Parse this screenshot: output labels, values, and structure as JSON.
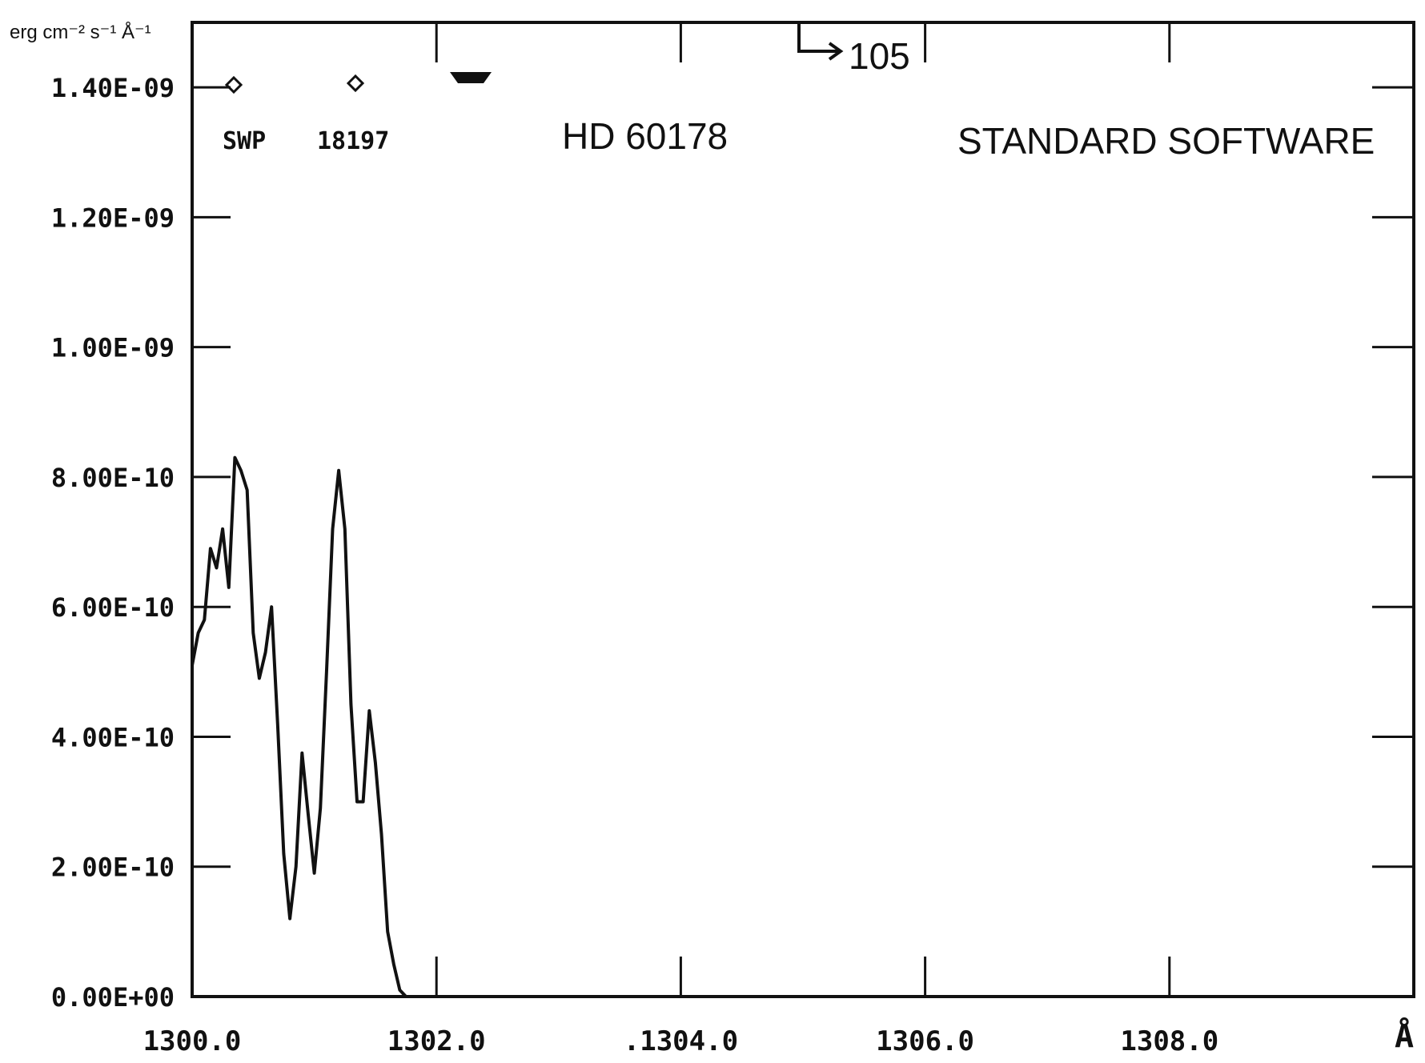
{
  "chart_data": {
    "type": "line",
    "ylabel": "erg cm⁻² s⁻¹ Å⁻¹",
    "xlabel": "Å",
    "xlim": [
      1300.0,
      1310.0
    ],
    "ylim": [
      0,
      1.5e-09
    ],
    "x_ticks": [
      1300.0,
      1302.0,
      1304.0,
      1306.0,
      1308.0
    ],
    "x_tick_labels": [
      "1300.0",
      "1302.0",
      ".1304.0",
      "1306.0",
      "1308.0"
    ],
    "y_ticks": [
      0,
      2e-10,
      4e-10,
      6e-10,
      8e-10,
      1e-09,
      1.2e-09,
      1.4e-09
    ],
    "y_tick_labels": [
      "0.00E+00",
      "2.00E-10",
      "4.00E-10",
      "6.00E-10",
      "8.00E-10",
      "1.00E-09",
      "1.20E-09",
      "1.40E-09"
    ],
    "grid": false,
    "annotations": {
      "swp_label": "SWP",
      "image_number": "18197",
      "star_name": "HD 60178",
      "software": "STANDARD SOFTWARE",
      "off_scale_marker": "105"
    },
    "series": [
      {
        "x": [
          1300.0,
          1300.05,
          1300.1,
          1300.15,
          1300.2,
          1300.25,
          1300.3,
          1300.35,
          1300.4,
          1300.45,
          1300.5,
          1300.55,
          1300.6,
          1300.65,
          1300.7,
          1300.75,
          1300.8,
          1300.85,
          1300.9,
          1300.95,
          1301.0,
          1301.05,
          1301.1,
          1301.15,
          1301.2,
          1301.25,
          1301.3,
          1301.35,
          1301.4,
          1301.45,
          1301.5,
          1301.55,
          1301.6,
          1301.65,
          1301.7,
          1301.75,
          1301.8,
          1301.85,
          1301.9,
          1301.95,
          1302.0,
          1302.05,
          1302.1,
          1302.2,
          1302.3,
          1302.4,
          1302.5,
          1302.55,
          1302.6,
          1302.65,
          1302.7,
          1302.75,
          1302.8,
          1302.85,
          1302.9,
          1302.95,
          1303.0,
          1303.05,
          1303.1,
          1303.15,
          1303.2,
          1303.25,
          1303.3,
          1303.35,
          1303.4,
          1303.45,
          1303.5,
          1303.55,
          1303.6,
          1303.65,
          1303.7,
          1303.75,
          1303.8,
          1303.85,
          1303.9,
          1303.95,
          1304.0,
          1304.05,
          1304.1,
          1304.15,
          1304.2,
          1304.25,
          1304.3,
          1304.35,
          1304.4,
          1304.45,
          1304.5,
          1304.55,
          1304.6,
          1304.65,
          1304.7,
          1304.75,
          1304.8,
          1304.85,
          1304.9,
          1305.0,
          1305.1,
          1305.2,
          1305.25,
          1305.3,
          1305.35,
          1305.4,
          1305.45,
          1305.5,
          1305.55,
          1305.6,
          1305.65,
          1305.7,
          1305.8,
          1305.9,
          1306.0,
          1306.1,
          1306.2,
          1306.25,
          1306.3,
          1306.35,
          1306.4,
          1306.45,
          1306.5,
          1306.55,
          1306.6,
          1306.65,
          1306.7,
          1306.75,
          1306.8,
          1306.85,
          1306.9,
          1306.95,
          1307.0,
          1307.05,
          1307.1,
          1307.15,
          1307.2,
          1307.25,
          1307.3,
          1307.35,
          1307.4,
          1307.45,
          1307.5,
          1307.55,
          1307.6,
          1307.65,
          1307.7,
          1307.75,
          1307.8,
          1307.85,
          1307.9,
          1307.95,
          1308.0,
          1308.05,
          1308.1,
          1308.15,
          1308.2,
          1308.25,
          1308.3,
          1308.35,
          1308.4,
          1308.45,
          1308.5,
          1308.55,
          1308.6,
          1308.65,
          1308.7,
          1308.75,
          1308.8,
          1308.85,
          1308.9,
          1308.95,
          1309.0,
          1309.05,
          1309.1,
          1309.2,
          1309.4,
          1309.6,
          1309.7,
          1309.8,
          1309.85,
          1309.9,
          1309.95,
          1310.0
        ],
        "y": [
          5.1e-10,
          5.6e-10,
          5.8e-10,
          6.9e-10,
          6.6e-10,
          7.2e-10,
          6.3e-10,
          8.3e-10,
          8.1e-10,
          7.8e-10,
          5.6e-10,
          4.9e-10,
          5.3e-10,
          6e-10,
          4.2e-10,
          2.2e-10,
          1.2e-10,
          2e-10,
          3.75e-10,
          2.8e-10,
          1.9e-10,
          2.9e-10,
          5e-10,
          7.2e-10,
          8.1e-10,
          7.2e-10,
          4.5e-10,
          3e-10,
          3e-10,
          4.4e-10,
          3.6e-10,
          2.5e-10,
          1e-10,
          5e-11,
          1e-11,
          0.0,
          0.0,
          0.0,
          0.0,
          0.0,
          0.0,
          0.0,
          0.0,
          0.0,
          0.0,
          0.0,
          0.0,
          0.0,
          0.0,
          0.0,
          0.0,
          0.0,
          0.0,
          0.0,
          0.0,
          0.0,
          0.0,
          0.0,
          0.0,
          0.0,
          0.0,
          0.0,
          0.0,
          0.0,
          0.0,
          0.0,
          0.0,
          0.0,
          0.0,
          0.0,
          0.0,
          0.0,
          0.0,
          0.0,
          0.0,
          0.0,
          0.0,
          0.0,
          0.0,
          0.0,
          0.0,
          0.0,
          0.0,
          0.0,
          0.0,
          0.0,
          0.0,
          0.0,
          0.0,
          0.0,
          0.0,
          0.0,
          0.0,
          0.0,
          0.0,
          0.0,
          0.0,
          0.0,
          0.0,
          0.0,
          0.0,
          0.0,
          0.0,
          0.0,
          0.0,
          0.0,
          0.0,
          0.0,
          0.0,
          0.0,
          0.0,
          0.0,
          0.0,
          0.0,
          0.0,
          0.0,
          0.0,
          0.0,
          0.0,
          0.0,
          0.0,
          0.0,
          0.0,
          0.0,
          0.0,
          0.0,
          0.0,
          0.0,
          0.0,
          0.0,
          0.0,
          0.0,
          0.0,
          0.0,
          0.0,
          0.0,
          0.0,
          0.0,
          0.0,
          0.0,
          0.0,
          0.0,
          0.0,
          0.0,
          0.0,
          0.0,
          0.0,
          0.0,
          0.0,
          0.0,
          0.0,
          0.0,
          0.0,
          0.0,
          0.0,
          0.0,
          0.0,
          0.0,
          0.0,
          0.0,
          0.0,
          0.0,
          0.0,
          0.0,
          0.0,
          0.0,
          0.0,
          0.0,
          0.0,
          0.0,
          0.0,
          0.0,
          0.0,
          0.0,
          0.0,
          0.0,
          0.0,
          0.0,
          0.0,
          0.0
        ]
      }
    ]
  }
}
